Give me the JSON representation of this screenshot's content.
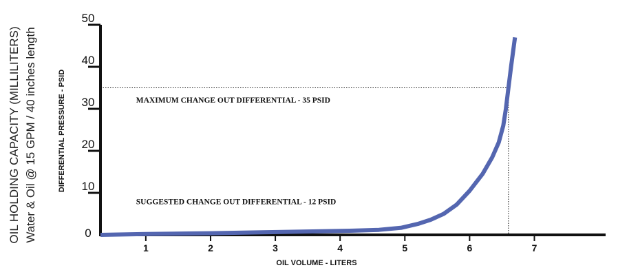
{
  "chart_data": {
    "type": "line",
    "title_line1": "OIL HOLDING CAPACITY (MILLILITERS)",
    "title_line2": "Water & Oil @ 15 GPM / 40 inches length",
    "xlabel": "OIL VOLUME - LITERS",
    "ylabel": "DIFFERENTIAL PRESSURE - PSID",
    "xlim": [
      0.3,
      8.1
    ],
    "ylim": [
      0,
      50
    ],
    "x_ticks": [
      1,
      2,
      3,
      4,
      5,
      6,
      7
    ],
    "y_ticks": [
      0,
      10,
      20,
      30,
      40,
      50
    ],
    "grid": false,
    "series": [
      {
        "color": "#5466b0",
        "points": [
          [
            0.3,
            0.0
          ],
          [
            1.0,
            0.2
          ],
          [
            2.0,
            0.4
          ],
          [
            2.8,
            0.6
          ],
          [
            3.5,
            0.8
          ],
          [
            4.2,
            1.0
          ],
          [
            4.6,
            1.2
          ],
          [
            4.95,
            1.7
          ],
          [
            5.2,
            2.6
          ],
          [
            5.4,
            3.6
          ],
          [
            5.6,
            5.0
          ],
          [
            5.8,
            7.2
          ],
          [
            6.0,
            10.5
          ],
          [
            6.2,
            14.5
          ],
          [
            6.35,
            18.5
          ],
          [
            6.45,
            22.0
          ],
          [
            6.52,
            26.0
          ],
          [
            6.56,
            30.0
          ],
          [
            6.6,
            35.0
          ],
          [
            6.64,
            40.0
          ],
          [
            6.7,
            47.0
          ]
        ]
      }
    ],
    "annotations": [
      {
        "text": "MAXIMUM CHANGE OUT DIFFERENTIAL - 35 PSID",
        "line_y": 35,
        "line_x_end": 6.6,
        "label_y": 31.5,
        "label_x": 0.85,
        "drop_line_x": 6.6
      },
      {
        "text": "SUGGESTED CHANGE OUT DIFFERENTIAL - 12 PSID",
        "label_y": 7.3,
        "label_x": 0.85
      }
    ]
  }
}
